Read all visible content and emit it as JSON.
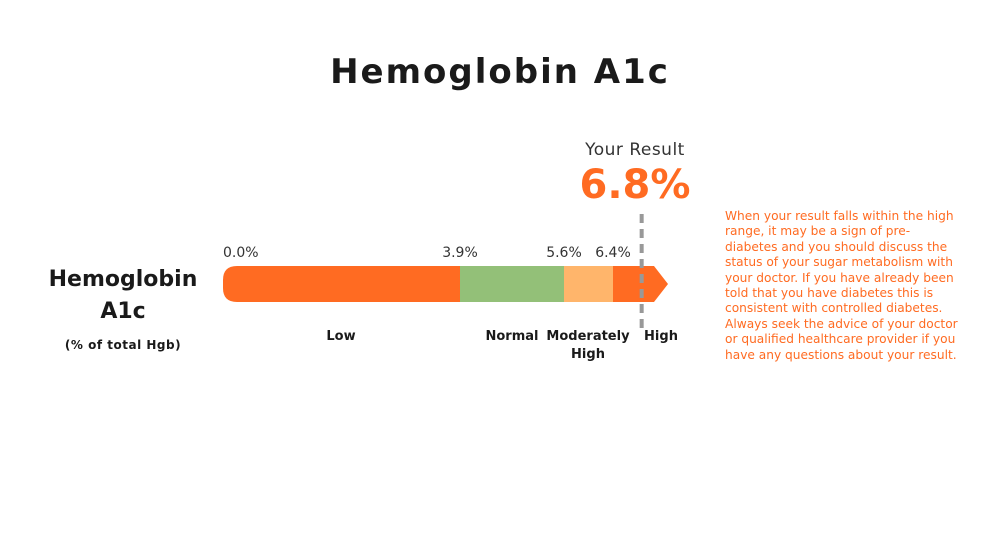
{
  "title": "Hemoglobin A1c",
  "left_label": {
    "line1": "Hemoglobin",
    "line2": "A1c",
    "unit": "(% of total Hgb)"
  },
  "result": {
    "caption": "Your Result",
    "value_text": "6.8%",
    "value": 6.8
  },
  "note": "When your result falls within the high range, it may be a sign of pre-diabetes and you should discuss the status of your sugar metabolism with your doctor. If you have already been told that you have diabetes this is consistent with controlled diabetes. Always seek the advice of your doctor or qualified healthcare provider if you have any questions about your result.",
  "colors": {
    "low": "#ff6b22",
    "normal": "#93c078",
    "moderately_high": "#ffb56b",
    "high": "#ff6b22",
    "marker": "#999999",
    "accent": "#ff6b22"
  },
  "chart_data": {
    "type": "bar",
    "title": "Hemoglobin A1c",
    "unit": "%",
    "xlim": [
      0,
      7.0
    ],
    "ranges": [
      {
        "label": "Low",
        "start": 0.0,
        "end": 3.9,
        "color": "#ff6b22"
      },
      {
        "label": "Normal",
        "start": 3.9,
        "end": 5.6,
        "color": "#93c078"
      },
      {
        "label": "Moderately High",
        "start": 5.6,
        "end": 6.4,
        "color": "#ffb56b"
      },
      {
        "label": "High",
        "start": 6.4,
        "end": 7.0,
        "color": "#ff6b22"
      }
    ],
    "ticks": [
      {
        "value": 0.0,
        "label": "0.0%"
      },
      {
        "value": 3.9,
        "label": "3.9%"
      },
      {
        "value": 5.6,
        "label": "5.6%"
      },
      {
        "value": 6.4,
        "label": "6.4%"
      }
    ],
    "marker": {
      "value": 6.8,
      "label": "6.8%"
    }
  }
}
